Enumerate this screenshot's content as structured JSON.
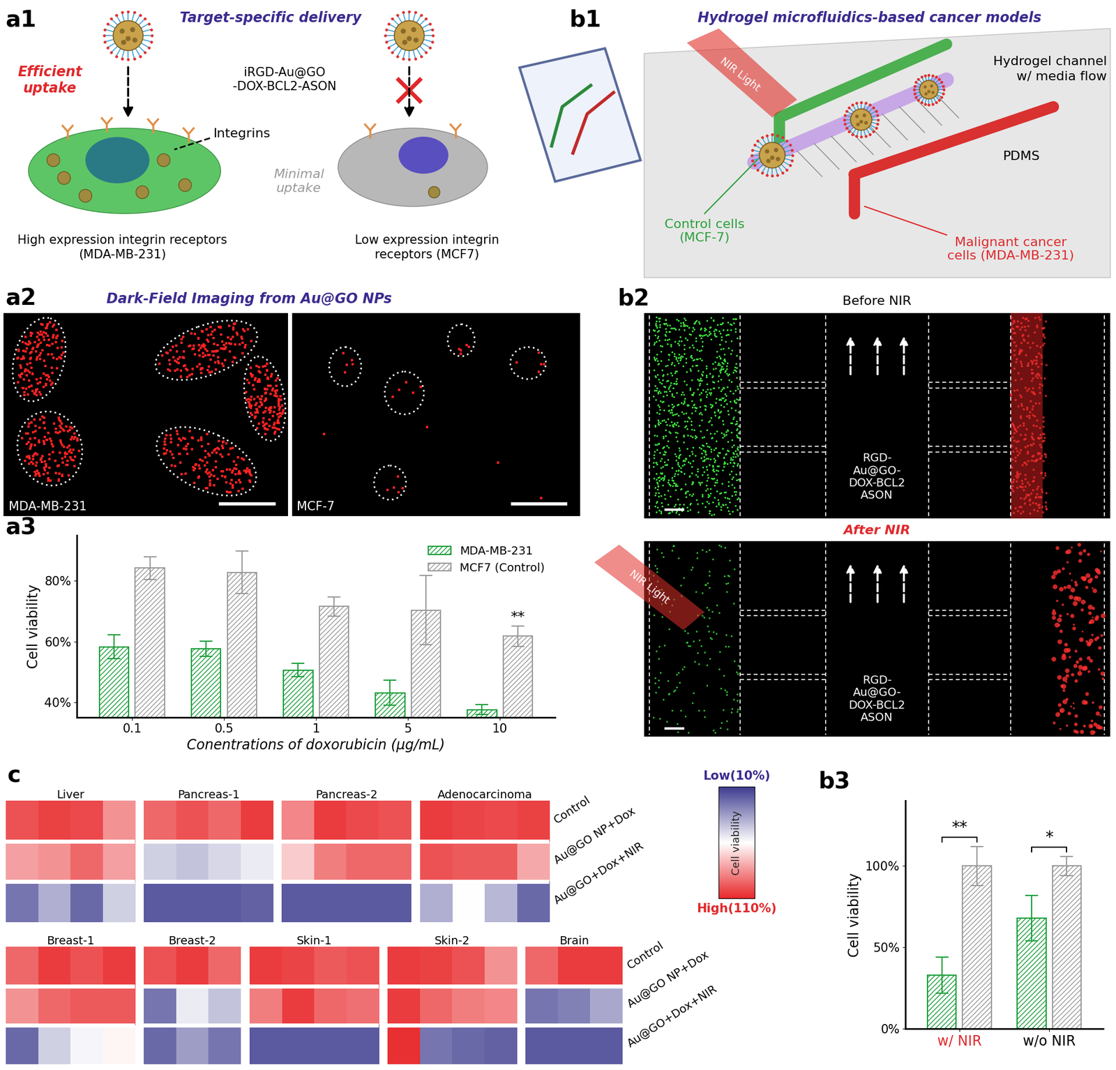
{
  "diagram": {
    "a1": {
      "panel": "a1",
      "title": "Target-specific delivery",
      "left_note": "Efficient\nuptake",
      "particle": "iRGD-Au@GO\n-DOX-BCL2-ASON",
      "receptor": "Integrins",
      "right_note": "Minimal\nuptake",
      "left_caption": "High expression integrin receptors\n(MDA-MB-231)",
      "right_caption": "Low expression integrin\nreceptors (MCF7)"
    },
    "b1": {
      "panel": "b1",
      "title": "Hydrogel microfluidics-based cancer models",
      "light": "NIR Light",
      "channel": "Hydrogel channel\nw/ media flow",
      "material": "PDMS",
      "control": "Control cells\n(MCF-7)",
      "malignant": "Malignant cancer\ncells (MDA-MB-231)"
    },
    "a2": {
      "panel": "a2",
      "title": "Dark-Field Imaging from Au@GO NPs",
      "images": [
        "MDA-MB-231",
        "MCF-7"
      ]
    },
    "b2": {
      "panel": "b2",
      "before": "Before NIR",
      "after": "After NIR",
      "light": "NIR Light",
      "particle": "RGD-\nAu@GO-\nDOX-BCL2\nASON"
    }
  },
  "chart_data": [
    {
      "type": "bar",
      "panel": "a3",
      "categories": [
        "0.1",
        "0.5",
        "1",
        "5",
        "10"
      ],
      "x_label": "Conentrations of doxorubicin (μg/mL)",
      "y_label": "Cell viability",
      "ylim": [
        35,
        95
      ],
      "yticks": [
        {
          "value": 40,
          "label": "40%"
        },
        {
          "value": 60,
          "label": "60%"
        },
        {
          "value": 80,
          "label": "80%"
        }
      ],
      "legend": "upper right",
      "series": [
        {
          "name": "MDA-MB-231",
          "color": "#1a9e3a",
          "values": [
            58.3,
            57.6,
            50.6,
            43.2,
            37.6
          ],
          "errors": [
            3.9,
            2.5,
            2.2,
            4.2,
            1.6
          ]
        },
        {
          "name": "MCF7 (Control)",
          "color": "#9a9a9a",
          "values": [
            84.2,
            82.8,
            71.6,
            70.4,
            61.8
          ],
          "errors": [
            3.8,
            7.0,
            3.2,
            11.4,
            3.4
          ]
        }
      ],
      "annotations": [
        {
          "text": "**",
          "category": "10",
          "series": "MCF7 (Control)"
        }
      ]
    },
    {
      "type": "bar",
      "panel": "b3",
      "categories": [
        "w/ NIR",
        "w/o NIR"
      ],
      "y_label": "Cell viability",
      "ylim": [
        0,
        140
      ],
      "yticks": [
        {
          "value": 0,
          "label": "0%"
        },
        {
          "value": 50,
          "label": "50%"
        },
        {
          "value": 100,
          "label": "100%"
        }
      ],
      "series": [
        {
          "color": "#1a9e3a",
          "values": [
            33,
            68
          ],
          "errors": [
            11,
            14
          ]
        },
        {
          "color": "#9a9a9a",
          "values": [
            100,
            100
          ],
          "errors": [
            12,
            6
          ]
        }
      ],
      "annotations": [
        {
          "text": "**",
          "category": "w/ NIR"
        },
        {
          "text": "*",
          "category": "w/o NIR"
        }
      ]
    },
    {
      "type": "heatmap",
      "panel": "c",
      "rows": [
        "Control",
        "Au@GO NP+Dox",
        "Au@GO+Dox+NIR"
      ],
      "groups": [
        {
          "name": "Liver",
          "cells": [
            [
              100,
              104,
              102,
              85
            ],
            [
              82,
              85,
              95,
              82
            ],
            [
              25,
              40,
              22,
              48
            ]
          ]
        },
        {
          "name": "Pancreas-1",
          "cells": [
            [
              95,
              100,
              95,
              105
            ],
            [
              48,
              45,
              50,
              55
            ],
            [
              18,
              18,
              18,
              20
            ]
          ]
        },
        {
          "name": "Pancreas-2",
          "cells": [
            [
              88,
              105,
              102,
              100
            ],
            [
              72,
              90,
              95,
              95
            ],
            [
              18,
              18,
              18,
              18
            ]
          ]
        },
        {
          "name": "Adenocarcinoma",
          "cells": [
            [
              105,
              103,
              102,
              104
            ],
            [
              100,
              98,
              98,
              80
            ],
            [
              40,
              60,
              42,
              22
            ]
          ]
        }
      ],
      "colorbar": {
        "range": [
          10,
          110
        ],
        "ticks": [
          {
            "value": 10,
            "label": "Low(10%)"
          },
          {
            "value": 110,
            "label": "High(110%)"
          }
        ],
        "label": "Cell viability"
      }
    },
    {
      "type": "heatmap",
      "rows": [
        "Control",
        "Au@GO NP+Dox",
        "Au@GO+Dox+NIR"
      ],
      "groups": [
        {
          "name": "Breast-1",
          "cells": [
            [
              95,
              105,
              100,
              105
            ],
            [
              85,
              95,
              98,
              98
            ],
            [
              22,
              48,
              58,
              62
            ]
          ]
        },
        {
          "name": "Breast-2",
          "cells": [
            [
              100,
              105,
              95
            ],
            [
              25,
              55,
              45
            ],
            [
              22,
              35,
              25
            ]
          ]
        },
        {
          "name": "Skin-1",
          "cells": [
            [
              105,
              103,
              98,
              100
            ],
            [
              90,
              105,
              95,
              93
            ],
            [
              18,
              18,
              18,
              18
            ]
          ]
        },
        {
          "name": "Skin-2",
          "cells": [
            [
              105,
              104,
              100,
              85
            ],
            [
              105,
              95,
              90,
              88
            ],
            [
              108,
              25,
              22,
              20
            ]
          ]
        },
        {
          "name": "Brain",
          "cells": [
            [
              95,
              105,
              105
            ],
            [
              25,
              28,
              38
            ],
            [
              18,
              18,
              18
            ]
          ]
        }
      ]
    }
  ]
}
